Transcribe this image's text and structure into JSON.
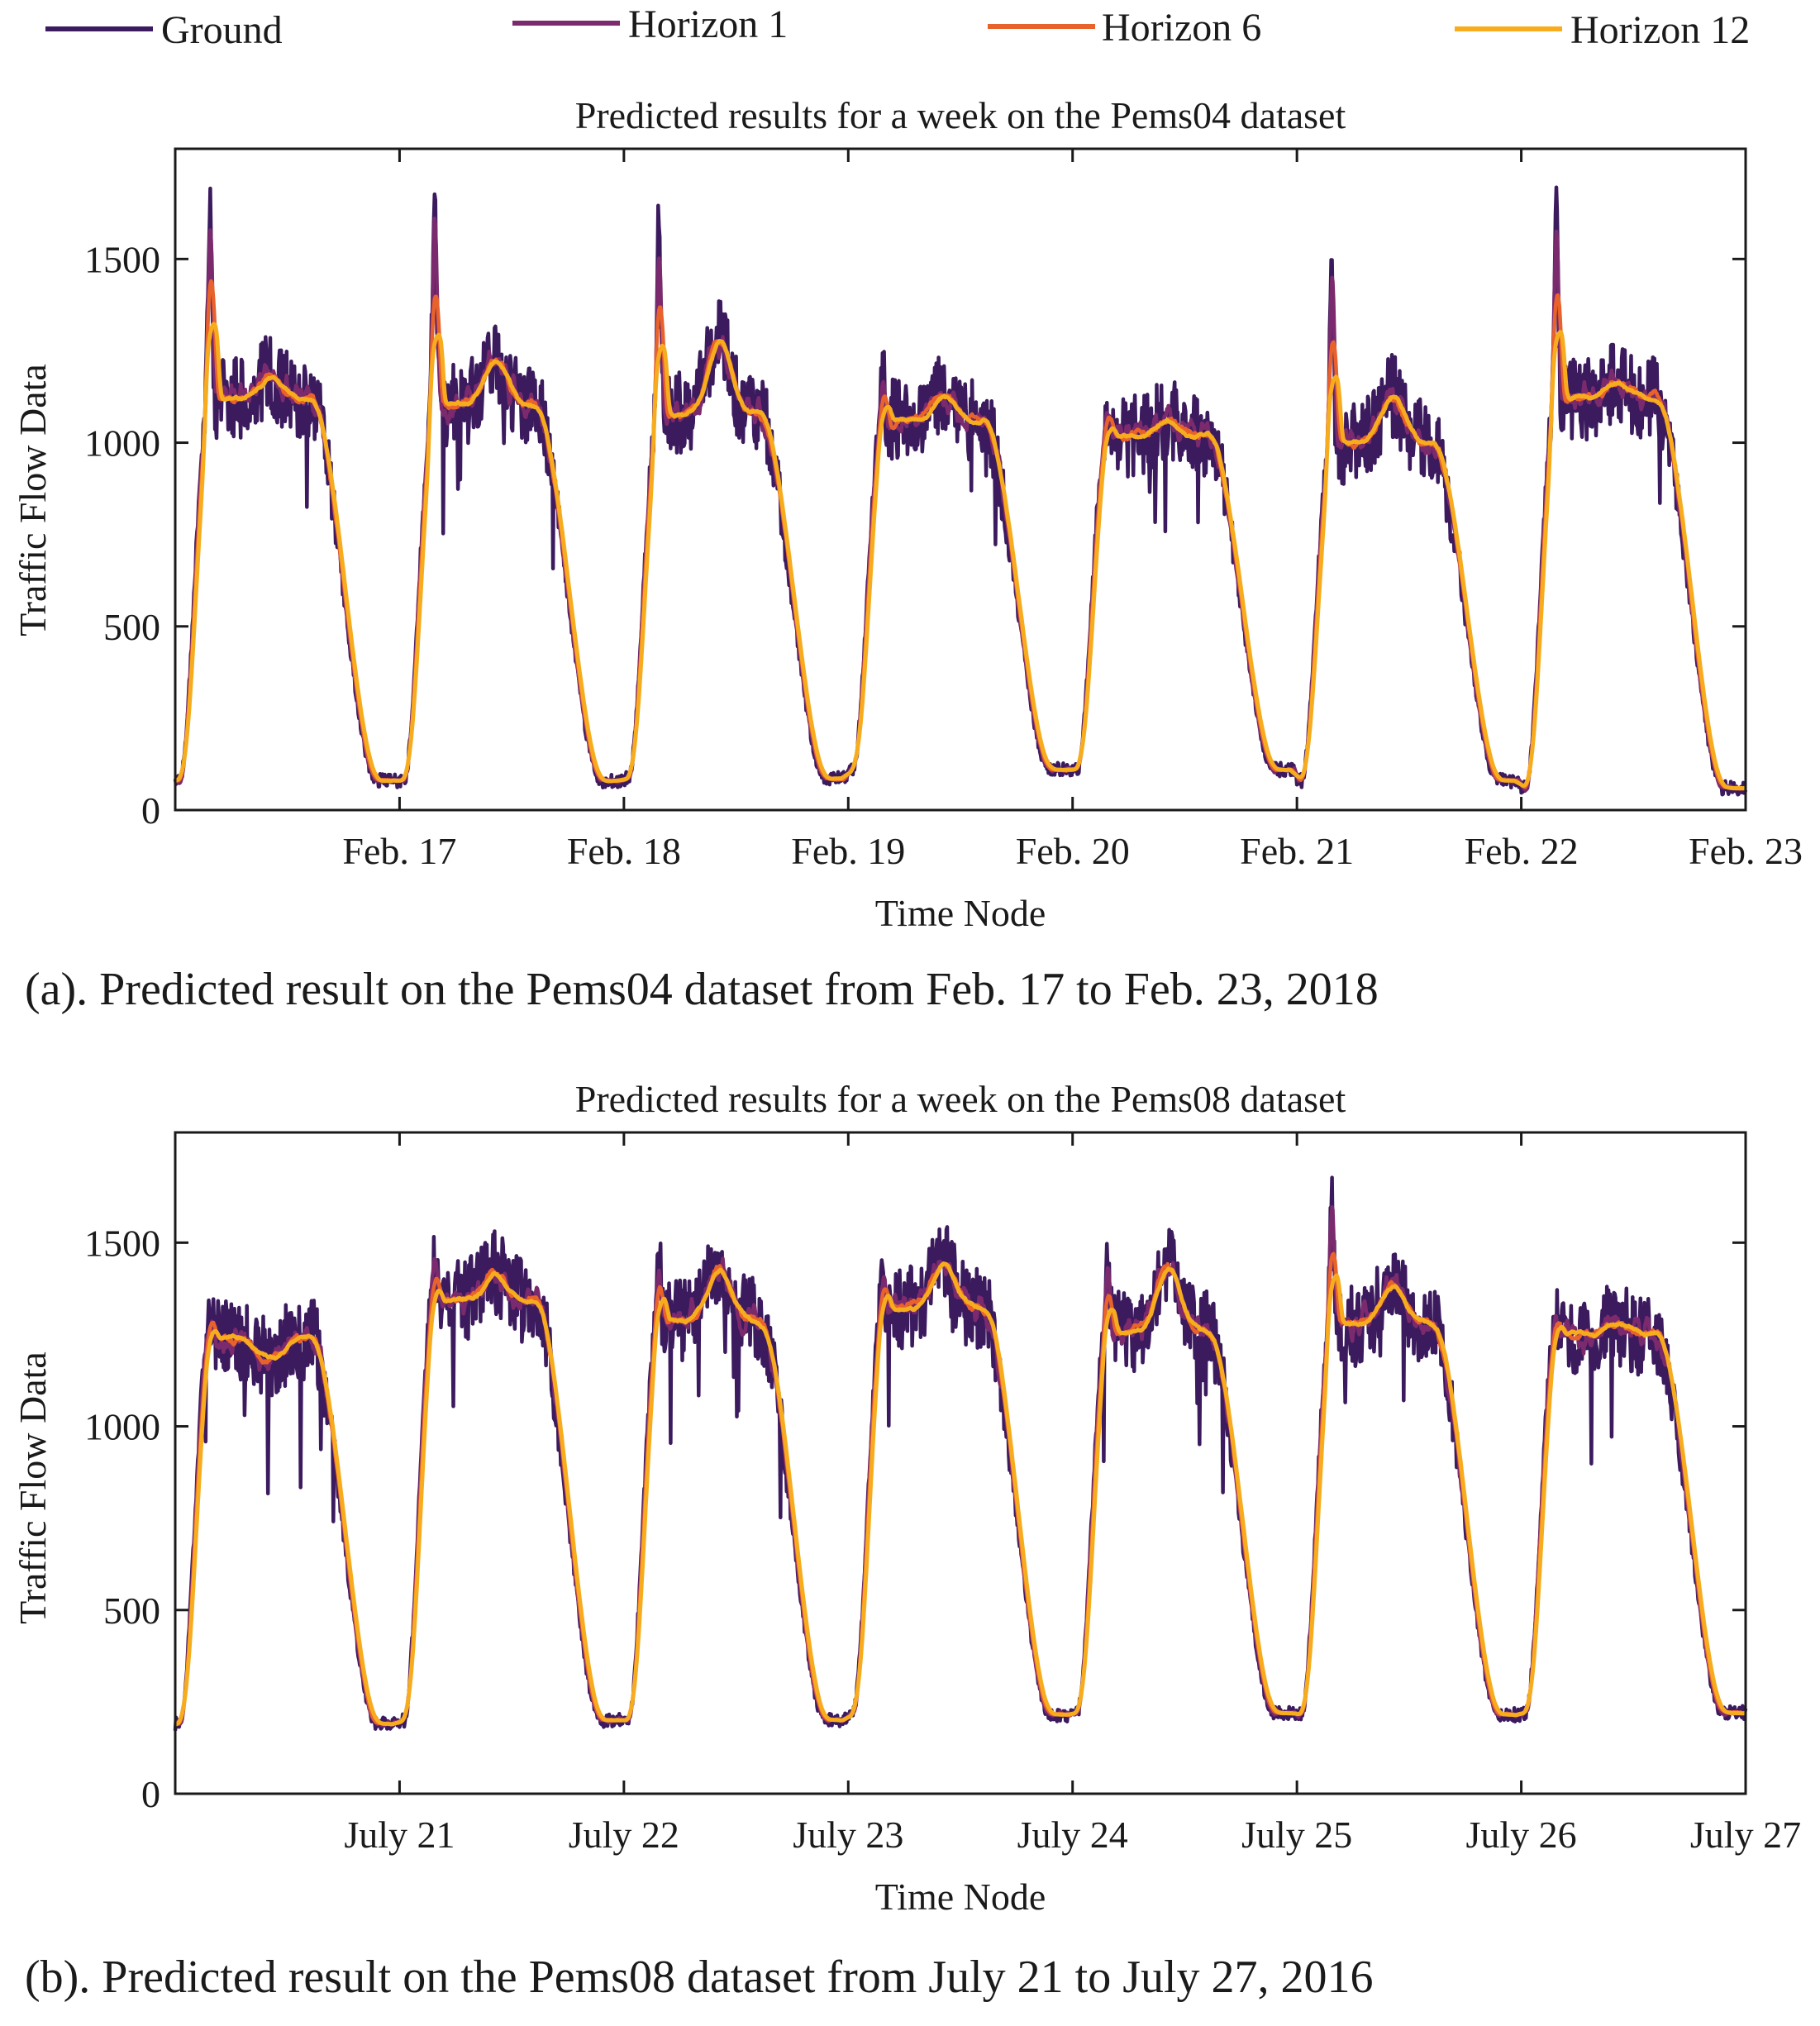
{
  "legend": [
    {
      "label": "Ground",
      "color": "#3b1a5e"
    },
    {
      "label": "Horizon 1",
      "color": "#7b2a6d"
    },
    {
      "label": "Horizon 6",
      "color": "#e8622c"
    },
    {
      "label": "Horizon 12",
      "color": "#f7ac1e"
    }
  ],
  "captions": {
    "a": "(a). Predicted result on the Pems04 dataset from Feb. 17 to Feb. 23, 2018",
    "b": "(b). Predicted result on the Pems08 dataset from July 21 to July 27, 2016"
  },
  "chart_data": [
    {
      "type": "line",
      "title": "Predicted results for a week on the Pems04 dataset",
      "xlabel": "Time Node",
      "ylabel": "Traffic Flow Data",
      "xlim": [
        0,
        7
      ],
      "ylim": [
        0,
        1800
      ],
      "yticks": [
        0,
        500,
        1000,
        1500
      ],
      "xtick_positions": [
        1,
        2,
        3,
        4,
        5,
        6,
        7
      ],
      "xtick_labels": [
        "Feb. 17",
        "Feb. 18",
        "Feb. 19",
        "Feb. 20",
        "Feb. 21",
        "Feb. 22",
        "Feb. 23"
      ],
      "grid": false,
      "daily_profile": [
        {
          "day_start": 0,
          "min": 80,
          "peak": 1700,
          "plateau": 1120,
          "evening": 1180
        },
        {
          "day_start": 1,
          "min": 80,
          "peak": 1660,
          "plateau": 1100,
          "evening": 1230
        },
        {
          "day_start": 2,
          "min": 85,
          "peak": 1600,
          "plateau": 1080,
          "evening": 1280
        },
        {
          "day_start": 3,
          "min": 110,
          "peak": 1180,
          "plateau": 1060,
          "evening": 1130
        },
        {
          "day_start": 4,
          "min": 110,
          "peak": 1090,
          "plateau": 1020,
          "evening": 1060
        },
        {
          "day_start": 5,
          "min": 80,
          "peak": 1510,
          "plateau": 1000,
          "evening": 1130
        },
        {
          "day_start": 6,
          "min": 60,
          "peak": 1640,
          "plateau": 1120,
          "evening": 1170
        }
      ],
      "series": [
        {
          "name": "Ground",
          "color": "#3b1a5e",
          "noise": 95,
          "lag": 0,
          "smooth": 0
        },
        {
          "name": "Horizon 1",
          "color": "#7b2a6d",
          "noise": 60,
          "lag": 0.002,
          "smooth": 2
        },
        {
          "name": "Horizon 6",
          "color": "#e8622c",
          "noise": 35,
          "lag": 0.005,
          "smooth": 5
        },
        {
          "name": "Horizon 12",
          "color": "#f7ac1e",
          "noise": 25,
          "lag": 0.009,
          "smooth": 8
        }
      ]
    },
    {
      "type": "line",
      "title": "Predicted results for a week on the Pems08 dataset",
      "xlabel": "Time Node",
      "ylabel": "Traffic Flow Data",
      "xlim": [
        0,
        7
      ],
      "ylim": [
        0,
        1800
      ],
      "yticks": [
        0,
        500,
        1000,
        1500
      ],
      "xtick_positions": [
        1,
        2,
        3,
        4,
        5,
        6,
        7
      ],
      "xtick_labels": [
        "July 21",
        "July 22",
        "July 23",
        "July 24",
        "July 25",
        "July 26",
        "July 27"
      ],
      "grid": false,
      "daily_profile": [
        {
          "day_start": 0,
          "min": 190,
          "peak": 1310,
          "plateau": 1240,
          "evening": 1180
        },
        {
          "day_start": 1,
          "min": 200,
          "peak": 1440,
          "plateau": 1340,
          "evening": 1420
        },
        {
          "day_start": 2,
          "min": 200,
          "peak": 1460,
          "plateau": 1290,
          "evening": 1430
        },
        {
          "day_start": 3,
          "min": 215,
          "peak": 1420,
          "plateau": 1320,
          "evening": 1440
        },
        {
          "day_start": 4,
          "min": 220,
          "peak": 1440,
          "plateau": 1260,
          "evening": 1440
        },
        {
          "day_start": 5,
          "min": 215,
          "peak": 1650,
          "plateau": 1280,
          "evening": 1390
        },
        {
          "day_start": 6,
          "min": 220,
          "peak": 1310,
          "plateau": 1250,
          "evening": 1280
        }
      ],
      "series": [
        {
          "name": "Ground",
          "color": "#3b1a5e",
          "noise": 95,
          "lag": 0,
          "smooth": 0
        },
        {
          "name": "Horizon 1",
          "color": "#7b2a6d",
          "noise": 60,
          "lag": 0.002,
          "smooth": 2
        },
        {
          "name": "Horizon 6",
          "color": "#e8622c",
          "noise": 35,
          "lag": 0.005,
          "smooth": 5
        },
        {
          "name": "Horizon 12",
          "color": "#f7ac1e",
          "noise": 25,
          "lag": 0.009,
          "smooth": 8
        }
      ]
    }
  ]
}
